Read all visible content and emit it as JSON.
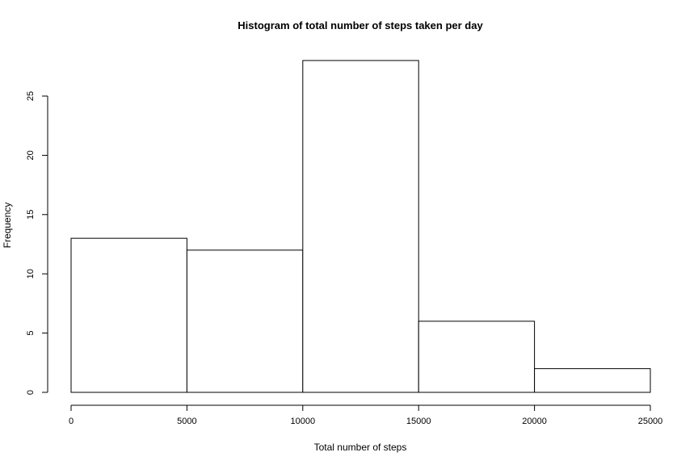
{
  "chart_data": {
    "type": "bar",
    "title": "Histogram of total number of steps taken per day",
    "xlabel": "Total number of steps",
    "ylabel": "Frequency",
    "bins": [
      {
        "start": 0,
        "end": 5000,
        "count": 13
      },
      {
        "start": 5000,
        "end": 10000,
        "count": 12
      },
      {
        "start": 10000,
        "end": 15000,
        "count": 28
      },
      {
        "start": 15000,
        "end": 20000,
        "count": 6
      },
      {
        "start": 20000,
        "end": 25000,
        "count": 2
      }
    ],
    "xlim": [
      0,
      25000
    ],
    "ylim": [
      0,
      28
    ],
    "xticks": [
      0,
      5000,
      10000,
      15000,
      20000,
      25000
    ],
    "xtick_labels": [
      "0",
      "5000",
      "10000",
      "15000",
      "20000",
      "25000"
    ],
    "yticks": [
      0,
      5,
      10,
      15,
      20,
      25
    ],
    "ytick_labels": [
      "0",
      "5",
      "10",
      "15",
      "20",
      "25"
    ],
    "grid": false,
    "bar_fill": "#ffffff",
    "bar_stroke": "#000000"
  }
}
